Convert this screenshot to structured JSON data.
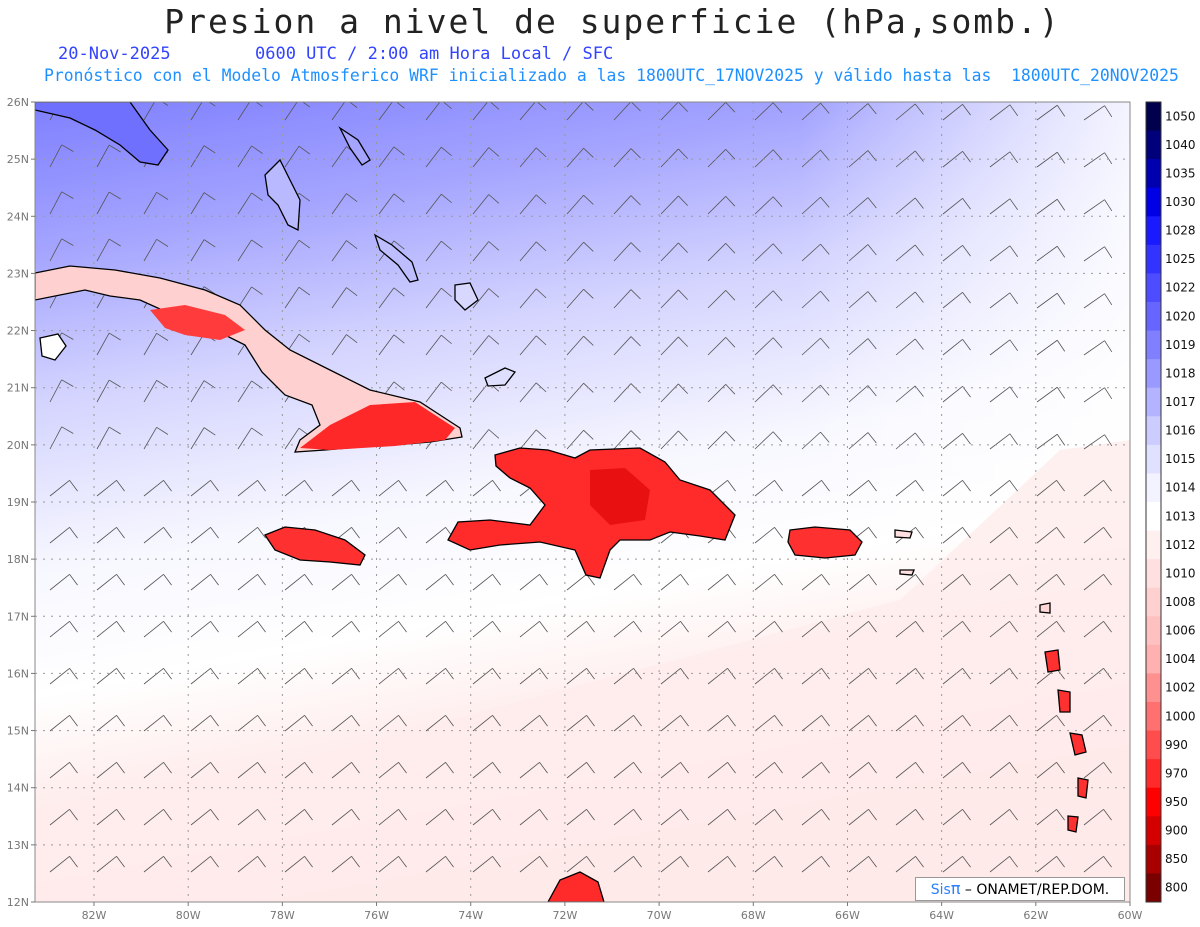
{
  "header": {
    "title": "Presion a nivel de superficie (hPa,somb.)",
    "date": "20-Nov-2025",
    "time_info": "0600 UTC / 2:00 am Hora Local / SFC",
    "model_info": "Pronóstico con el Modelo Atmosferico WRF inicializado a las 1800UTC_17NOV2025 y válido hasta las  1800UTC_20NOV2025"
  },
  "colors": {
    "date": "#3344ff",
    "model_info": "#1e90ff",
    "brand": "#2a7fff"
  },
  "map": {
    "lat_labels": [
      "12N",
      "13N",
      "14N",
      "15N",
      "16N",
      "17N",
      "18N",
      "19N",
      "20N",
      "21N",
      "22N",
      "23N",
      "24N",
      "25N",
      "26N"
    ],
    "lon_labels": [
      "82W",
      "80W",
      "78W",
      "76W",
      "74W",
      "72W",
      "70W",
      "68W",
      "66W",
      "64W",
      "62W",
      "60W"
    ]
  },
  "colorbar": {
    "levels": [
      "1050",
      "1040",
      "1035",
      "1030",
      "1028",
      "1025",
      "1022",
      "1020",
      "1019",
      "1018",
      "1017",
      "1016",
      "1015",
      "1014",
      "1013",
      "1012",
      "1010",
      "1008",
      "1006",
      "1004",
      "1002",
      "1000",
      "990",
      "970",
      "950",
      "900",
      "850",
      "800"
    ],
    "colors": [
      "#00004d",
      "#00007a",
      "#0000b0",
      "#0000e6",
      "#1a1aff",
      "#3333ff",
      "#4d4dff",
      "#6666ff",
      "#8080ff",
      "#9999ff",
      "#b3b3ff",
      "#ccccff",
      "#e0e0ff",
      "#f3f3ff",
      "#ffffff",
      "#fff0f0",
      "#ffe0e0",
      "#ffd0d0",
      "#ffc0c0",
      "#ffb0b0",
      "#ff9090",
      "#ff7070",
      "#ff4d4d",
      "#ff2a2a",
      "#ff0000",
      "#d40000",
      "#a80000",
      "#7a0000"
    ]
  },
  "credit": {
    "brand": "Sis",
    "pi": "π",
    "org": "– ONAMET/REP.DOM."
  }
}
